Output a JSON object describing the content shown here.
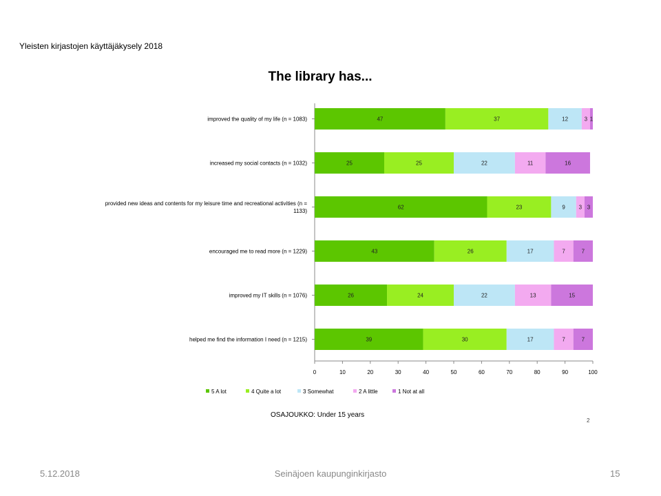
{
  "survey_title": "Yleisten kirjastojen käyttäjäkysely 2018",
  "subset_label": "OSAJOUKKO: Under 15 years",
  "page_number": "2",
  "footer": {
    "date": "5.12.2018",
    "organization": "Seinäjoen kaupunginkirjasto",
    "slide_number": "15"
  },
  "chart_data": {
    "type": "bar",
    "orientation": "horizontal",
    "stacked": true,
    "title": "The library has...",
    "categories": [
      [
        "improved the quality of my life  (n = 1083)"
      ],
      [
        "increased my social contacts  (n = 1032)"
      ],
      [
        "provided new ideas and contents for my leisure time and recreational activities  (n =",
        "1133)"
      ],
      [
        "encouraged me to read more  (n = 1229)"
      ],
      [
        "improved my IT skills  (n = 1076)"
      ],
      [
        "helped me find the information I need  (n = 1215)"
      ]
    ],
    "series": [
      {
        "name": "5 A lot",
        "color": "#5cc600",
        "values": [
          47,
          25,
          62,
          43,
          26,
          39
        ]
      },
      {
        "name": "4 Quite a lot",
        "color": "#99ee22",
        "values": [
          37,
          25,
          23,
          26,
          24,
          30
        ]
      },
      {
        "name": "3 Somewhat",
        "color": "#bde6f6",
        "values": [
          12,
          22,
          9,
          17,
          22,
          17
        ]
      },
      {
        "name": "2 A little",
        "color": "#f3aaf0",
        "values": [
          3,
          11,
          3,
          7,
          13,
          7
        ]
      },
      {
        "name": "1 Not at all",
        "color": "#cc77dd",
        "values": [
          1,
          16,
          3,
          7,
          15,
          7
        ]
      }
    ],
    "xlim": [
      0,
      100
    ],
    "xticks": [
      0,
      10,
      20,
      30,
      40,
      50,
      60,
      70,
      80,
      90,
      100
    ],
    "legend_position": "bottom",
    "grid": false
  }
}
